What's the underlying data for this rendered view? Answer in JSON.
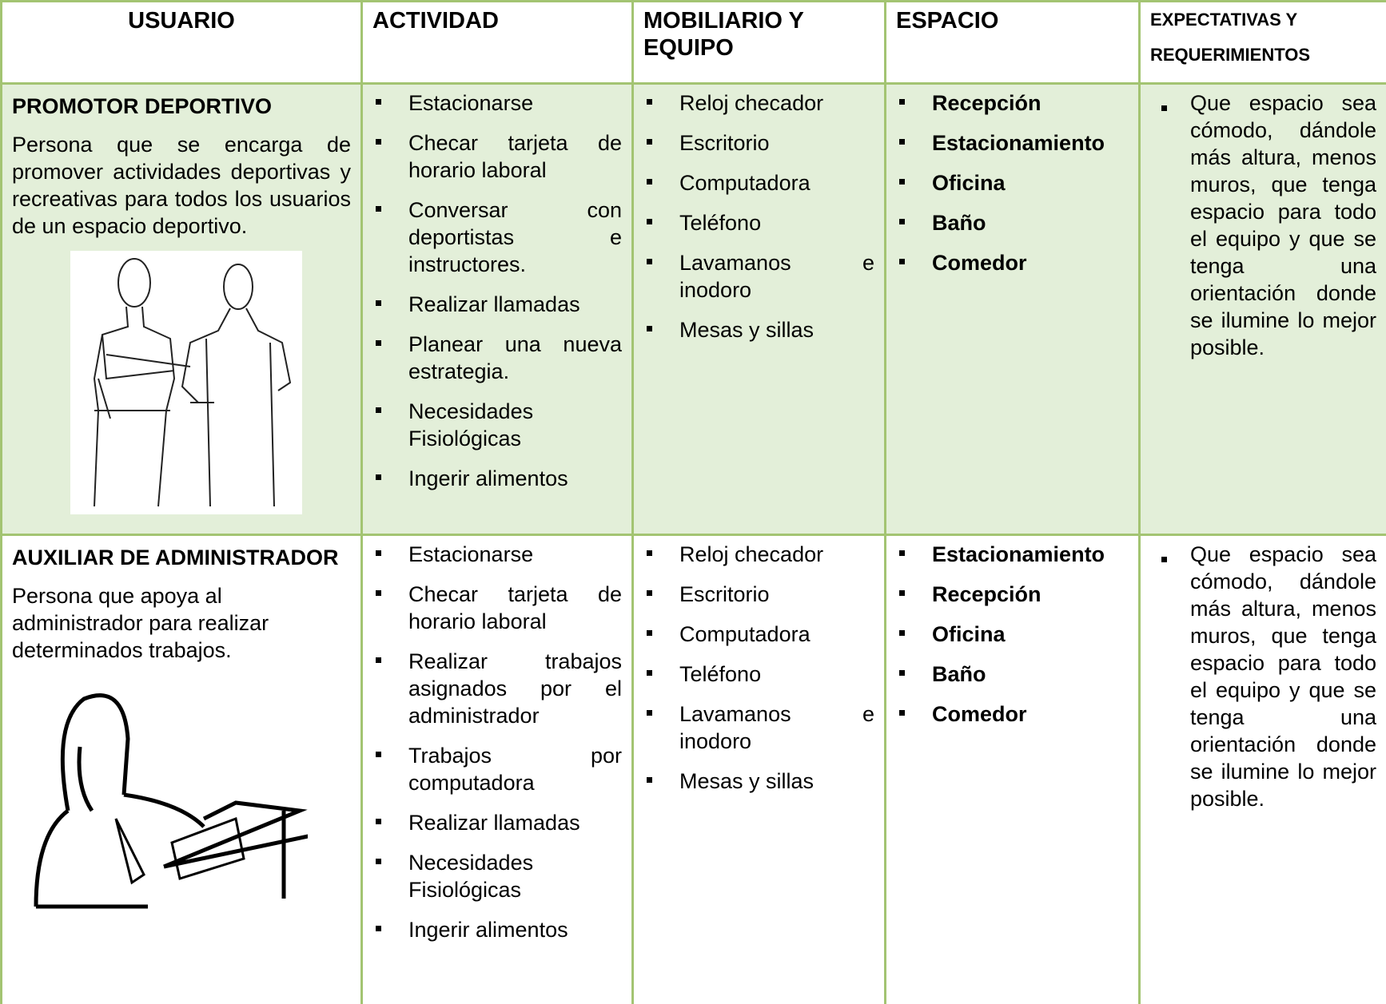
{
  "header": {
    "columns": [
      "USUARIO",
      "ACTIVIDAD",
      "MOBILIARIO Y EQUIPO",
      "ESPACIO",
      "EXPECTATIVAS Y REQUERIMIENTOS"
    ]
  },
  "rows": [
    {
      "user": {
        "title": "PROMOTOR DEPORTIVO",
        "description": "Persona que se encarga de promover actividades deportivas y recreativas para todos los usuarios de un espacio deportivo."
      },
      "activities": [
        "Estacionarse",
        "Checar tarjeta de horario laboral",
        "Conversar con deportistas e instructores.",
        "Realizar llamadas",
        "Planear una nueva estrategia.",
        "Necesidades Fisiológicas",
        "Ingerir alimentos"
      ],
      "furniture": [
        "Reloj checador",
        "Escritorio",
        "Computadora",
        "Teléfono",
        "Lavamanos e inodoro",
        "Mesas y sillas"
      ],
      "spaces": [
        "Recepción",
        "Estacionamiento",
        "Oficina",
        "Baño",
        "Comedor"
      ],
      "expectations": "Que espacio sea cómodo, dándole más altura, menos muros, que tenga espacio para todo el equipo y que se tenga una orientación donde se ilumine lo mejor posible."
    },
    {
      "user": {
        "title": "AUXILIAR DE ADMINISTRADOR",
        "description": "Persona que apoya al administrador para realizar determinados trabajos."
      },
      "activities": [
        "Estacionarse",
        "Checar tarjeta de horario laboral",
        "Realizar trabajos asignados por el administrador",
        "Trabajos por computadora",
        "Realizar llamadas",
        "Necesidades Fisiológicas",
        "Ingerir alimentos"
      ],
      "furniture": [
        "Reloj checador",
        "Escritorio",
        "Computadora",
        "Teléfono",
        "Lavamanos e inodoro",
        "Mesas y sillas"
      ],
      "spaces": [
        "Estacionamiento",
        "Recepción",
        "Oficina",
        "Baño",
        "Comedor"
      ],
      "expectations": "Que espacio sea cómodo, dándole más altura, menos muros, que tenga espacio para todo el equipo y que se tenga una orientación donde se ilumine lo mejor posible."
    }
  ]
}
